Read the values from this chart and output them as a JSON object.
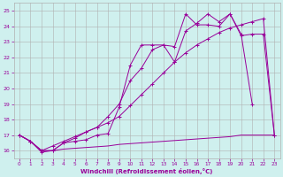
{
  "background_color": "#cff0ee",
  "grid_color": "#b0b0b0",
  "line_color": "#990099",
  "xlim": [
    -0.5,
    23.5
  ],
  "ylim": [
    15.5,
    25.5
  ],
  "yticks": [
    16,
    17,
    18,
    19,
    20,
    21,
    22,
    23,
    24,
    25
  ],
  "xticks": [
    0,
    1,
    2,
    3,
    4,
    5,
    6,
    7,
    8,
    9,
    10,
    11,
    12,
    13,
    14,
    15,
    16,
    17,
    18,
    19,
    20,
    21,
    22,
    23
  ],
  "xlabel": "Windchill (Refroidissement éolien,°C)",
  "series": [
    {
      "x": [
        0,
        1,
        2,
        3,
        4,
        5,
        6,
        7,
        8,
        9,
        10,
        11,
        12,
        13,
        14,
        15,
        16,
        17,
        18,
        19,
        20,
        21,
        22,
        23
      ],
      "y": [
        17.0,
        16.6,
        16.0,
        16.0,
        16.1,
        16.15,
        16.2,
        16.25,
        16.3,
        16.4,
        16.45,
        16.5,
        16.55,
        16.6,
        16.65,
        16.7,
        16.75,
        16.8,
        16.85,
        16.9,
        17.0,
        17.0,
        17.0,
        17.0
      ],
      "marker": false
    },
    {
      "x": [
        0,
        1,
        2,
        3,
        4,
        5,
        6,
        7,
        8,
        9,
        10,
        11,
        12,
        13,
        14,
        15,
        16,
        17,
        18,
        19,
        20,
        21
      ],
      "y": [
        17.0,
        16.6,
        16.0,
        16.0,
        16.5,
        16.8,
        17.2,
        17.5,
        18.2,
        19.0,
        20.5,
        21.3,
        22.5,
        22.8,
        22.7,
        24.8,
        24.1,
        24.1,
        24.0,
        24.8,
        23.5,
        19.0
      ],
      "marker": true
    },
    {
      "x": [
        0,
        1,
        2,
        3,
        4,
        5,
        6,
        7,
        8,
        9,
        10,
        11,
        12,
        13,
        14,
        15,
        16,
        17,
        18,
        19,
        20,
        21,
        22,
        23
      ],
      "y": [
        17.0,
        16.6,
        15.9,
        16.0,
        16.5,
        16.6,
        16.7,
        17.0,
        17.1,
        18.8,
        21.5,
        22.8,
        22.8,
        22.8,
        21.7,
        23.7,
        24.2,
        24.8,
        24.3,
        24.8,
        23.4,
        23.5,
        23.5,
        17.0
      ],
      "marker": true
    },
    {
      "x": [
        0,
        1,
        2,
        3,
        4,
        5,
        6,
        7,
        8,
        9,
        10,
        11,
        12,
        13,
        14,
        15,
        16,
        17,
        18,
        19,
        20,
        21,
        22,
        23
      ],
      "y": [
        17.0,
        16.6,
        16.0,
        16.3,
        16.6,
        16.9,
        17.2,
        17.5,
        17.8,
        18.2,
        18.9,
        19.6,
        20.3,
        21.0,
        21.7,
        22.3,
        22.8,
        23.2,
        23.6,
        23.9,
        24.1,
        24.3,
        24.5,
        17.0
      ],
      "marker": true
    }
  ]
}
